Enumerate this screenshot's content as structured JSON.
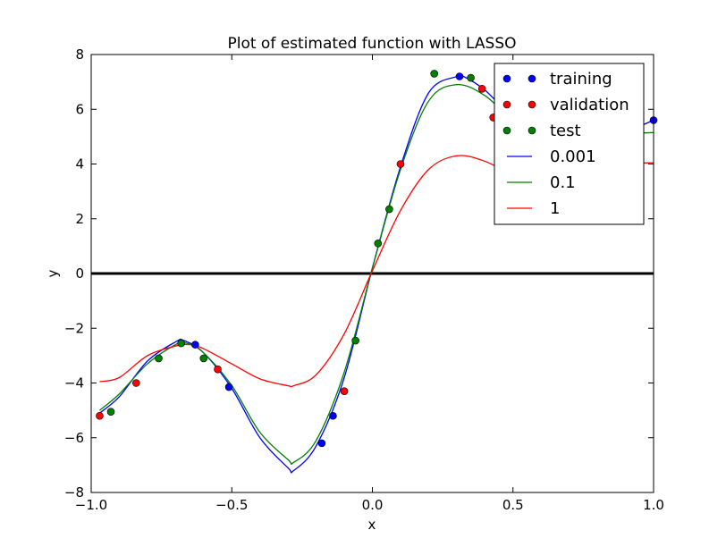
{
  "chart_data": {
    "type": "line",
    "title": "Plot of estimated function with LASSO",
    "xlabel": "x",
    "ylabel": "y",
    "xlim": [
      -1.0,
      1.0
    ],
    "ylim": [
      -8,
      8
    ],
    "xticks": [
      -1.0,
      -0.5,
      0.0,
      0.5,
      1.0
    ],
    "xtick_labels": [
      "−1.0",
      "−0.5",
      "0.0",
      "0.5",
      "1.0"
    ],
    "yticks": [
      -8,
      -6,
      -4,
      -2,
      0,
      2,
      4,
      6,
      8
    ],
    "ytick_labels": [
      "−8",
      "−6",
      "−4",
      "−2",
      "0",
      "2",
      "4",
      "6",
      "8"
    ],
    "grid": false,
    "legend_position": "top-right",
    "zero_line": true,
    "scatter_series": [
      {
        "name": "training",
        "color": "#0000ff",
        "points": [
          [
            -0.63,
            -2.6
          ],
          [
            -0.51,
            -4.15
          ],
          [
            -0.18,
            -6.2
          ],
          [
            -0.14,
            -5.2
          ],
          [
            0.31,
            7.2
          ],
          [
            1.0,
            5.6
          ]
        ]
      },
      {
        "name": "validation",
        "color": "#ff0000",
        "points": [
          [
            -0.97,
            -5.2
          ],
          [
            -0.84,
            -4.0
          ],
          [
            -0.55,
            -3.5
          ],
          [
            -0.1,
            -4.3
          ],
          [
            0.1,
            4.0
          ],
          [
            0.39,
            6.75
          ],
          [
            0.43,
            5.7
          ]
        ]
      },
      {
        "name": "test",
        "color": "#008000",
        "points": [
          [
            -0.93,
            -5.05
          ],
          [
            -0.76,
            -3.1
          ],
          [
            -0.68,
            -2.55
          ],
          [
            -0.6,
            -3.1
          ],
          [
            -0.06,
            -2.45
          ],
          [
            0.02,
            1.1
          ],
          [
            0.06,
            2.35
          ],
          [
            0.22,
            7.3
          ],
          [
            0.35,
            7.15
          ]
        ]
      }
    ],
    "line_series": [
      {
        "name": "0.001",
        "color": "#0000ff",
        "x": [
          -0.97,
          -0.9,
          -0.8,
          -0.7,
          -0.67,
          -0.6,
          -0.5,
          -0.4,
          -0.3,
          -0.28,
          -0.2,
          -0.1,
          0.0,
          0.1,
          0.2,
          0.3,
          0.32,
          0.4,
          0.5,
          0.6,
          0.7,
          0.8,
          0.9,
          1.0
        ],
        "y": [
          -5.1,
          -4.5,
          -3.2,
          -2.5,
          -2.45,
          -2.9,
          -4.2,
          -6.0,
          -7.1,
          -7.2,
          -6.3,
          -3.8,
          0.2,
          3.9,
          6.6,
          7.2,
          7.22,
          6.7,
          5.7,
          5.15,
          5.1,
          5.1,
          5.2,
          5.6
        ]
      },
      {
        "name": "0.1",
        "color": "#008000",
        "x": [
          -0.97,
          -0.9,
          -0.8,
          -0.7,
          -0.66,
          -0.6,
          -0.5,
          -0.4,
          -0.3,
          -0.28,
          -0.2,
          -0.1,
          0.0,
          0.1,
          0.2,
          0.3,
          0.4,
          0.5,
          0.6,
          0.7,
          0.8,
          0.9,
          1.0
        ],
        "y": [
          -5.0,
          -4.4,
          -3.3,
          -2.6,
          -2.55,
          -2.9,
          -4.1,
          -5.8,
          -6.8,
          -6.9,
          -6.1,
          -3.6,
          0.2,
          3.8,
          6.3,
          6.9,
          6.5,
          5.6,
          5.1,
          5.0,
          5.0,
          5.1,
          5.15
        ]
      },
      {
        "name": "1",
        "color": "#ff0000",
        "x": [
          -0.97,
          -0.9,
          -0.8,
          -0.7,
          -0.65,
          -0.6,
          -0.5,
          -0.4,
          -0.3,
          -0.28,
          -0.2,
          -0.1,
          0.0,
          0.1,
          0.2,
          0.3,
          0.4,
          0.5,
          0.6,
          0.7,
          0.8,
          0.9,
          1.0
        ],
        "y": [
          -3.95,
          -3.8,
          -3.0,
          -2.65,
          -2.6,
          -2.75,
          -3.3,
          -3.85,
          -4.1,
          -4.1,
          -3.7,
          -2.2,
          0.1,
          2.3,
          3.8,
          4.3,
          4.1,
          3.6,
          3.35,
          3.5,
          3.85,
          4.0,
          4.05
        ]
      }
    ]
  }
}
